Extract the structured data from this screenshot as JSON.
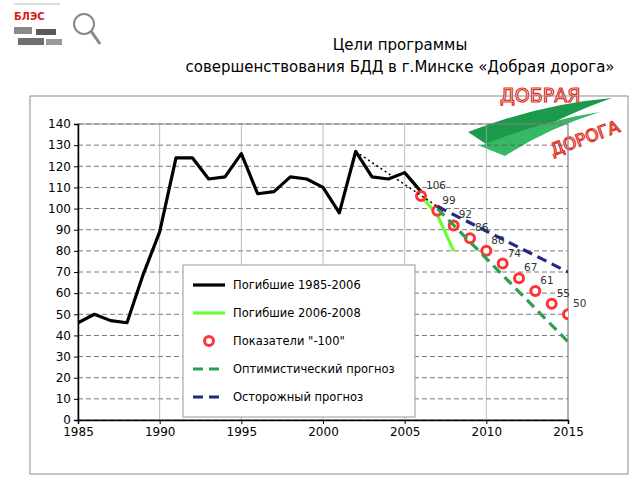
{
  "header": {
    "logo_left": "БЛЭС",
    "logo_right": [
      "ДОБРАЯ",
      "ДОРОГА"
    ]
  },
  "chart_data": {
    "type": "line",
    "title": "Цели программы\nсовершенствования БДД в г.Минске «Добрая дорога»",
    "xlim": [
      1985,
      2015
    ],
    "xticks": [
      1985,
      1990,
      1995,
      2000,
      2005,
      2010,
      2015
    ],
    "ylim": [
      0,
      140
    ],
    "yticks": [
      0,
      10,
      20,
      30,
      40,
      50,
      60,
      70,
      80,
      90,
      100,
      110,
      120,
      130,
      140
    ],
    "grid": true,
    "series": [
      {
        "name": "Погибшие 1985-2006",
        "color": "#000000",
        "line_style": "solid",
        "x": [
          1985,
          1986,
          1987,
          1988,
          1989,
          1990,
          1991,
          1992,
          1993,
          1994,
          1995,
          1996,
          1997,
          1998,
          1999,
          2000,
          2001,
          2002,
          2003,
          2004,
          2005,
          2006
        ],
        "values": [
          46,
          50,
          47,
          46,
          69,
          89,
          124,
          124,
          114,
          115,
          126,
          107,
          108,
          115,
          114,
          110,
          98,
          127,
          115,
          114,
          117,
          108
        ]
      },
      {
        "name": "Погибшие 2006-2008",
        "color": "#66ff33",
        "line_style": "solid",
        "x": [
          2006,
          2007,
          2008
        ],
        "values": [
          106,
          97,
          80
        ]
      },
      {
        "name": "Показатели \"-100\"",
        "color": "#ff3333",
        "line_style": "none",
        "marker": "circle",
        "data_labels": true,
        "x": [
          2006,
          2007,
          2008,
          2009,
          2010,
          2011,
          2012,
          2013,
          2014,
          2015
        ],
        "values": [
          106,
          99,
          92,
          86,
          80,
          74,
          67,
          61,
          55,
          50
        ]
      },
      {
        "name": "Оптимистический прогноз",
        "color": "#2e9e50",
        "line_style": "dashed",
        "x": [
          2007,
          2015
        ],
        "values": [
          100,
          37
        ]
      },
      {
        "name": "Осторожный прогноз",
        "color": "#1f2a80",
        "line_style": "dashed",
        "x": [
          2007,
          2015
        ],
        "values": [
          101,
          70
        ]
      },
      {
        "color": "#000000",
        "line_style": "dotted",
        "x": [
          2002,
          2007
        ],
        "values": [
          127,
          101
        ]
      }
    ]
  }
}
